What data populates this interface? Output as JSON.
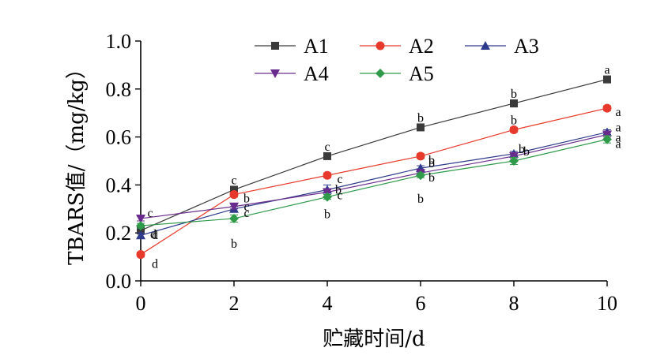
{
  "chart_data": {
    "type": "line",
    "xlabel": "贮藏时间/d",
    "ylabel": "TBARS值/（mg/kg）",
    "x": [
      0,
      2,
      4,
      6,
      8,
      10
    ],
    "xticks": [
      "0",
      "2",
      "4",
      "6",
      "8",
      "10"
    ],
    "yticks": [
      "0.0",
      "0.2",
      "0.4",
      "0.6",
      "0.8",
      "1.0"
    ],
    "xlim": [
      0,
      10
    ],
    "ylim": [
      0,
      1.0
    ],
    "grid": false,
    "legend_position": "top",
    "series": [
      {
        "name": "A1",
        "color": "#3a3a3a",
        "marker": "square",
        "values": [
          0.21,
          0.38,
          0.52,
          0.64,
          0.74,
          0.84
        ],
        "errors": [
          0.01,
          0.01,
          0.01,
          0.01,
          0.015,
          0.01
        ],
        "sig": [
          "d",
          "c",
          "c",
          "b",
          "b",
          "a"
        ]
      },
      {
        "name": "A2",
        "color": "#e83a2c",
        "marker": "circle",
        "values": [
          0.11,
          0.36,
          0.44,
          0.52,
          0.63,
          0.72
        ],
        "errors": [
          0.01,
          0.01,
          0.01,
          0.01,
          0.01,
          0.01
        ],
        "sig": [
          "d",
          "b",
          "c",
          "b",
          "b",
          "a"
        ]
      },
      {
        "name": "A3",
        "color": "#2e3a8c",
        "marker": "triangle-up",
        "values": [
          0.19,
          0.3,
          0.38,
          0.47,
          0.53,
          0.62
        ],
        "errors": [
          0.01,
          0.01,
          0.02,
          0.01,
          0.01,
          0.01
        ],
        "sig": [
          "d",
          "c",
          "b",
          "b",
          "b",
          "a"
        ]
      },
      {
        "name": "A4",
        "color": "#6a2c8c",
        "marker": "triangle-down",
        "values": [
          0.26,
          0.31,
          0.37,
          0.45,
          0.52,
          0.61
        ],
        "errors": [
          0.01,
          0.01,
          0.01,
          0.01,
          0.01,
          0.01
        ],
        "sig": [
          "c",
          "c",
          "c",
          "b",
          "b",
          "a"
        ]
      },
      {
        "name": "A5",
        "color": "#2e9a4a",
        "marker": "diamond",
        "values": [
          0.23,
          0.26,
          0.35,
          0.44,
          0.5,
          0.59
        ],
        "errors": [
          0.01,
          0.015,
          0.01,
          0.01,
          0.015,
          0.015
        ],
        "sig": [
          "c",
          "b",
          "b",
          "b",
          "b",
          "a"
        ]
      }
    ]
  }
}
